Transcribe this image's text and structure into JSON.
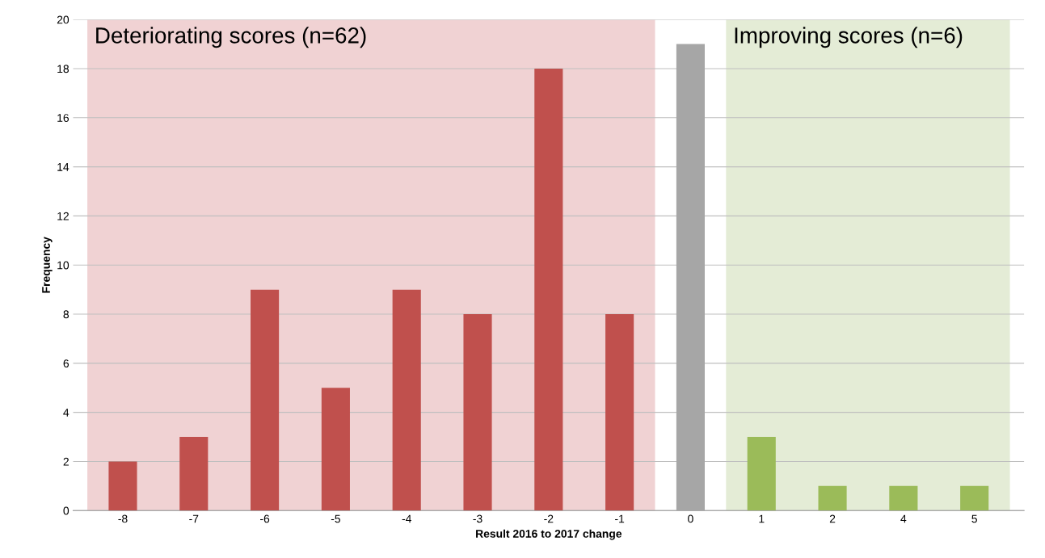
{
  "chart_data": {
    "type": "bar",
    "xlabel": "Result 2016 to 2017 change",
    "ylabel": "Frequency",
    "categories": [
      "-8",
      "-7",
      "-6",
      "-5",
      "-4",
      "-3",
      "-2",
      "-1",
      "0",
      "1",
      "2",
      "4",
      "5"
    ],
    "values": [
      2,
      3,
      9,
      5,
      9,
      8,
      18,
      8,
      19,
      3,
      1,
      1,
      1
    ],
    "colors": [
      "#c0504d",
      "#c0504d",
      "#c0504d",
      "#c0504d",
      "#c0504d",
      "#c0504d",
      "#c0504d",
      "#c0504d",
      "#a6a6a6",
      "#9bbb59",
      "#9bbb59",
      "#9bbb59",
      "#9bbb59"
    ],
    "ylim": [
      0,
      20
    ],
    "yticks": [
      0,
      2,
      4,
      6,
      8,
      10,
      12,
      14,
      16,
      18,
      20
    ],
    "grid": "y",
    "legend": false,
    "bands": [
      {
        "axis": "x",
        "from": "-8",
        "to": "-1",
        "label": "Deteriorating scores (n=62)",
        "color": "#f0d2d3"
      },
      {
        "axis": "x",
        "from": "1",
        "to": "5",
        "label": "Improving scores (n=6)",
        "color": "#e4ecd6"
      }
    ]
  }
}
